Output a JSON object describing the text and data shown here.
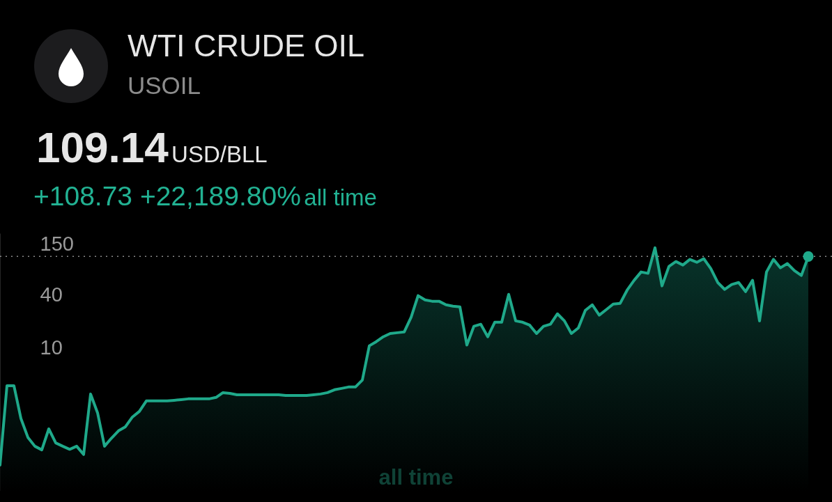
{
  "chart_data": {
    "type": "area",
    "title": "WTI CRUDE OIL",
    "subtitle": "USOIL",
    "annotations": [
      "109.14",
      "USD/BLL",
      "+108.73 +22,189.80%",
      "all time",
      "all time"
    ],
    "categories": [
      null,
      null,
      null,
      null,
      null,
      null,
      null,
      null,
      null,
      null,
      null,
      null,
      null,
      null,
      null,
      null,
      null,
      null,
      null,
      null,
      null,
      null,
      null,
      null,
      null,
      null,
      null,
      null,
      null,
      null,
      null,
      null,
      null,
      null,
      null,
      null,
      null,
      null,
      null,
      null,
      null,
      null,
      null,
      null,
      null,
      null,
      null,
      null,
      null,
      null,
      null,
      null,
      null,
      null,
      null,
      null,
      null,
      null,
      null,
      null,
      null,
      null,
      null,
      null,
      null,
      null,
      null,
      null,
      null,
      null,
      null,
      null,
      null,
      null,
      null,
      null,
      null,
      null,
      null,
      null,
      null,
      null,
      null,
      null,
      null,
      null,
      null,
      null,
      null,
      null,
      null,
      null,
      null,
      null,
      null,
      null,
      null,
      null,
      null,
      null,
      null,
      null,
      null,
      null,
      null,
      null,
      null,
      null,
      null,
      null,
      null,
      null,
      null,
      null,
      null,
      null,
      null
    ],
    "series": [
      {
        "color": "#1fa98a",
        "values": [
          0.47,
          3.74,
          3.74,
          1.59,
          0.97,
          0.77,
          0.7,
          1.21,
          0.84,
          0.77,
          0.71,
          0.77,
          0.62,
          3.01,
          1.84,
          0.77,
          0.95,
          1.15,
          1.28,
          1.65,
          1.91,
          2.51,
          2.51,
          2.51,
          2.51,
          2.55,
          2.6,
          2.65,
          2.65,
          2.65,
          2.65,
          2.75,
          3.12,
          3.06,
          2.95,
          2.95,
          2.95,
          2.95,
          2.95,
          2.95,
          2.95,
          2.9,
          2.9,
          2.9,
          2.9,
          2.95,
          3.01,
          3.12,
          3.36,
          3.48,
          3.61,
          3.61,
          4.33,
          10.6,
          11.8,
          13.4,
          14.6,
          14.9,
          15.2,
          22.3,
          39.2,
          35.1,
          33.9,
          33.9,
          30.9,
          29.8,
          29.3,
          10.8,
          17.6,
          18.6,
          13.4,
          19.6,
          19.6,
          40.6,
          20.3,
          19.6,
          18.2,
          14.6,
          17.6,
          18.6,
          24.4,
          20.3,
          14.6,
          16.9,
          26.7,
          30.9,
          23.6,
          27.2,
          31.5,
          32.1,
          45.3,
          58.5,
          72.8,
          70.2,
          137,
          50.6,
          84.2,
          95.5,
          87.3,
          101,
          93.8,
          103,
          79.6,
          55.3,
          46.1,
          52.4,
          55.3,
          43.6,
          58.5,
          20.3,
          72.8,
          101,
          81.1,
          90.6,
          75.4,
          66.4,
          109.14
        ]
      },
      {
        "type": "scatter",
        "color": "#1fa98a",
        "values": [
          null,
          null,
          null,
          null,
          null,
          null,
          null,
          null,
          null,
          null,
          null,
          null,
          null,
          null,
          null,
          null,
          null,
          null,
          null,
          null,
          null,
          null,
          null,
          null,
          null,
          null,
          null,
          null,
          null,
          null,
          null,
          null,
          null,
          null,
          null,
          null,
          null,
          null,
          null,
          null,
          null,
          null,
          null,
          null,
          null,
          null,
          null,
          null,
          null,
          null,
          null,
          null,
          null,
          null,
          null,
          null,
          null,
          null,
          null,
          null,
          null,
          null,
          null,
          null,
          null,
          null,
          null,
          null,
          null,
          null,
          null,
          null,
          null,
          null,
          null,
          null,
          null,
          null,
          null,
          null,
          null,
          null,
          null,
          null,
          null,
          null,
          null,
          null,
          null,
          null,
          null,
          null,
          null,
          null,
          null,
          null,
          null,
          null,
          null,
          null,
          null,
          null,
          null,
          null,
          null,
          null,
          null,
          null,
          null,
          null,
          null,
          null,
          null,
          null,
          null,
          null,
          109.14
        ]
      }
    ],
    "ylim": [
      0.24,
      200
    ],
    "yticks": [
      10,
      40,
      150
    ],
    "log": true,
    "ref_lines": [
      {
        "axis": "y",
        "value": 109.14,
        "color": "#8a8a8a",
        "line_style": "dotted"
      }
    ]
  }
}
